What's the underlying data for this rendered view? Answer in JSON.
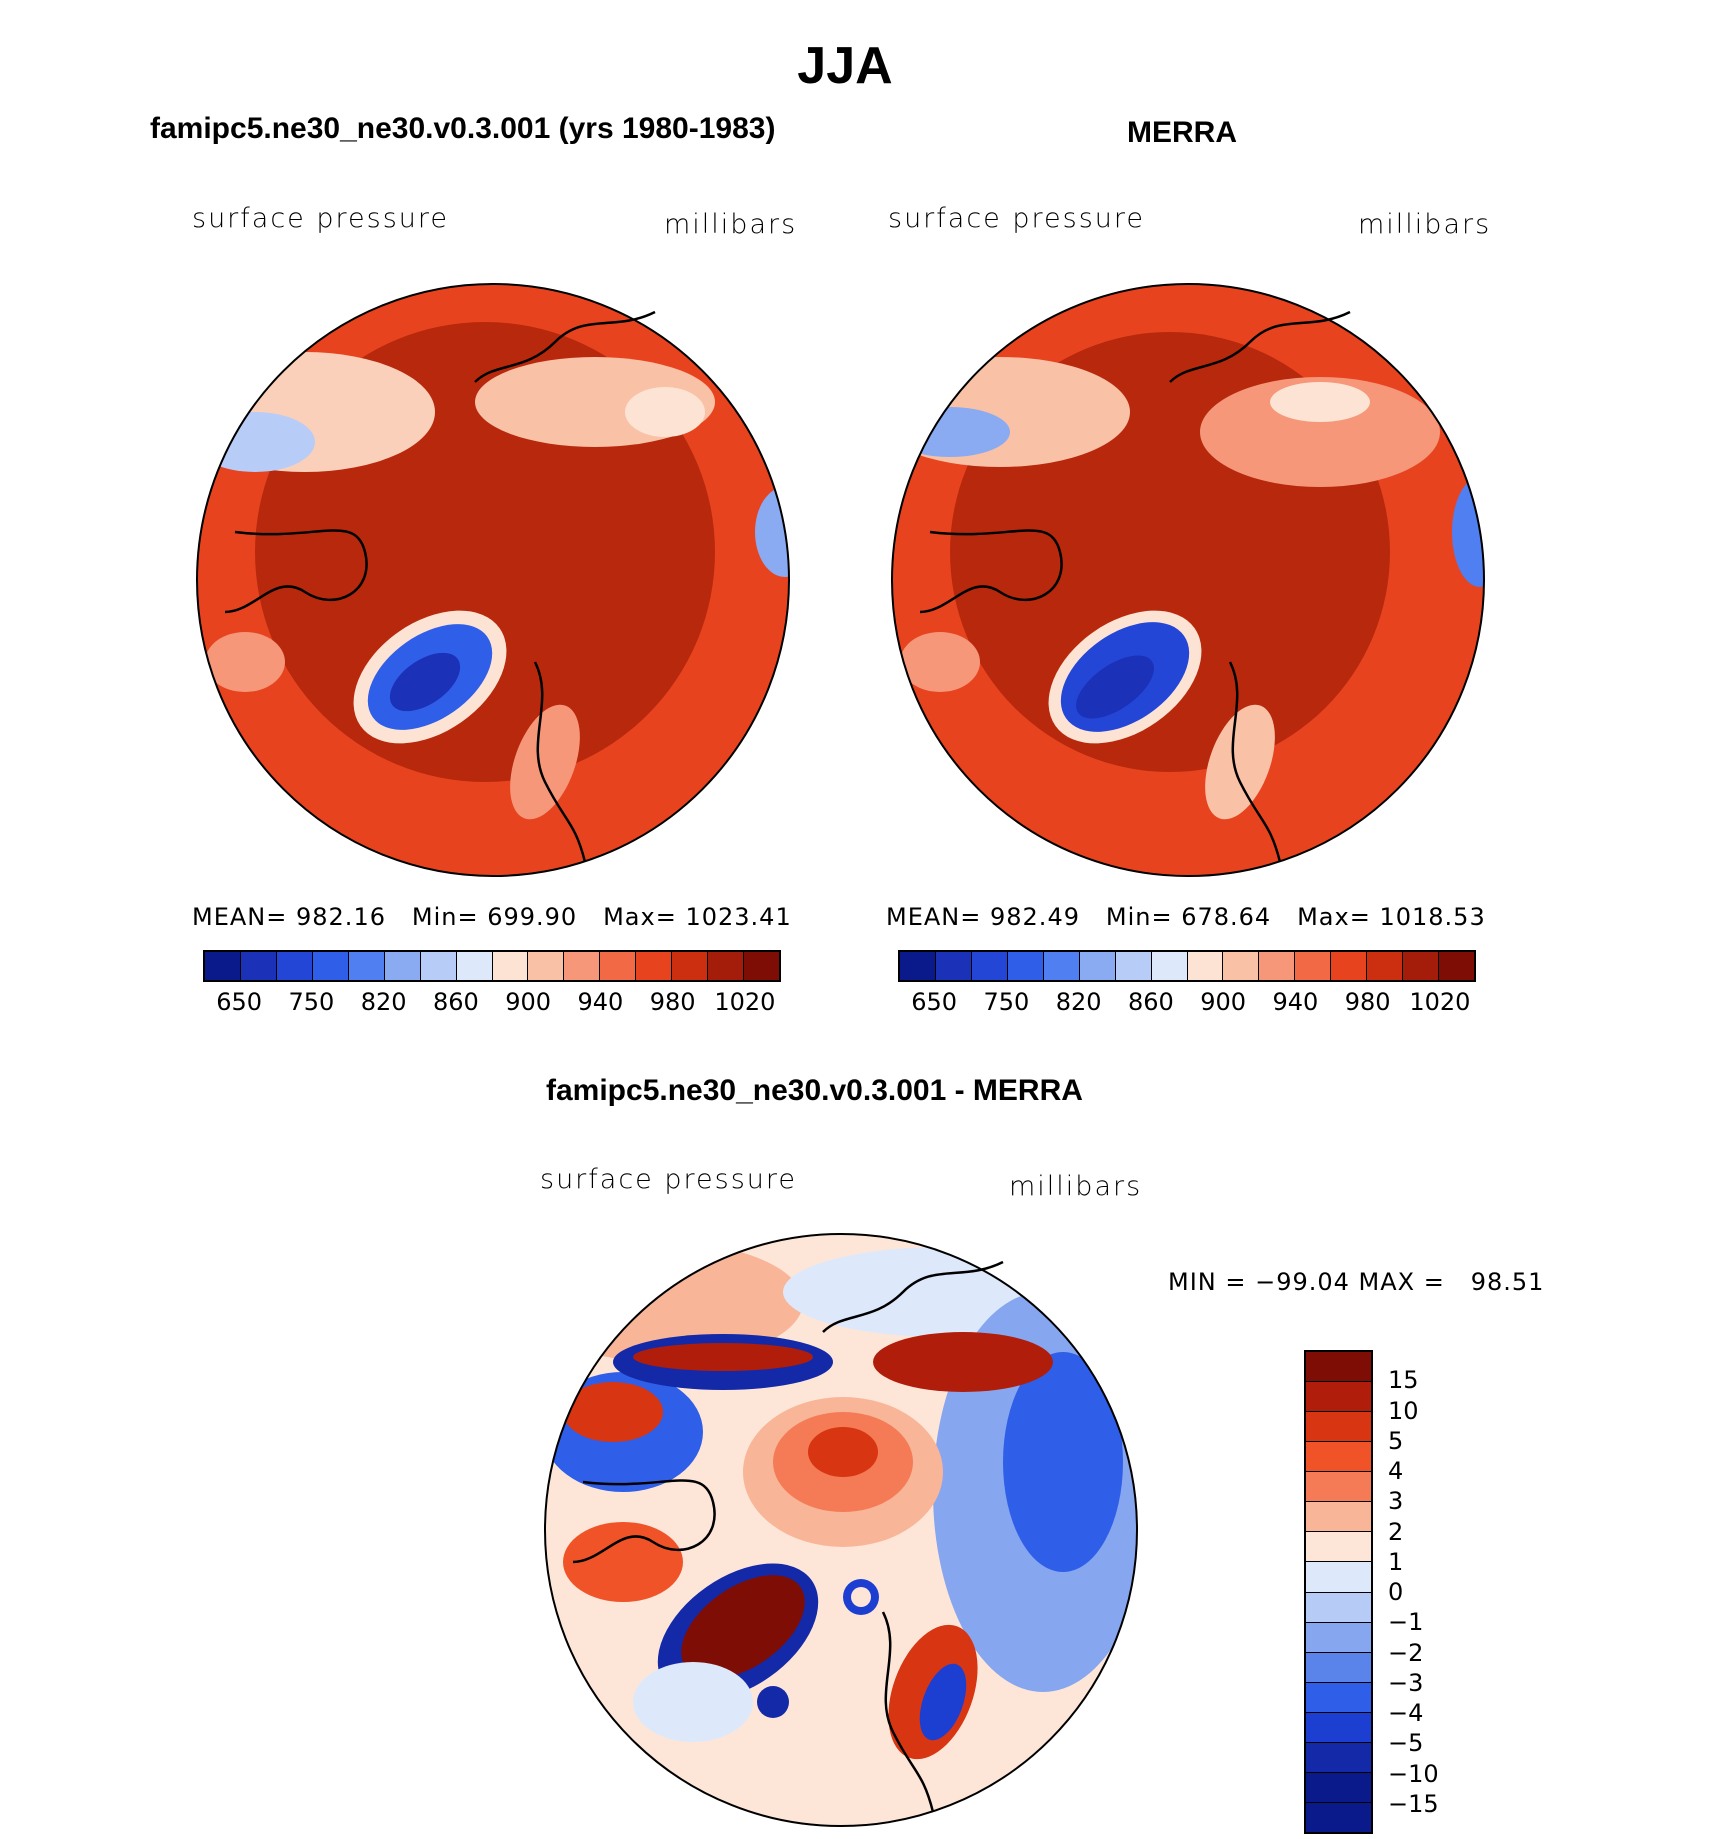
{
  "title": "JJA",
  "panels": [
    {
      "title": "famipc5.ne30_ne30.v0.3.001 (yrs 1980-1983)",
      "var_label": "surface pressure",
      "units": "millibars",
      "stats": {
        "mean_label": "MEAN=",
        "mean": "982.16",
        "min_label": "Min=",
        "min": "699.90",
        "max_label": "Max=",
        "max": "1023.41"
      }
    },
    {
      "title": "MERRA",
      "var_label": "surface pressure",
      "units": "millibars",
      "stats": {
        "mean_label": "MEAN=",
        "mean": "982.49",
        "min_label": "Min=",
        "min": "678.64",
        "max_label": "Max=",
        "max": "1018.53"
      }
    }
  ],
  "diff_panel": {
    "title": "famipc5.ne30_ne30.v0.3.001 - MERRA",
    "var_label": "surface pressure",
    "units": "millibars",
    "minmax": "MIN = −99.04 MAX =   98.51"
  },
  "colors": {
    "abs_scale": [
      "#0a1a8a",
      "#1b31b8",
      "#2346d6",
      "#2f5fe8",
      "#4f7ff0",
      "#8aaaf2",
      "#b7ccf7",
      "#dde8fb",
      "#fde3d3",
      "#f9c1a6",
      "#f6977a",
      "#f26a45",
      "#e8431f",
      "#cc2e10",
      "#a31d0a",
      "#7e0d06"
    ],
    "diff_scale": [
      "#7e0d06",
      "#b01d0b",
      "#d83512",
      "#f05328",
      "#f47b55",
      "#f8b598",
      "#fde6d8",
      "#dde9fb",
      "#b6cbf5",
      "#86a6ef",
      "#5a84ea",
      "#2f5fe8",
      "#1c3fd1",
      "#1429a8",
      "#0a1a8a"
    ]
  },
  "chart_data": [
    {
      "type": "heatmap",
      "title": "famipc5.ne30_ne30.v0.3.001 (yrs 1980-1983)",
      "variable": "surface pressure",
      "units": "millibars",
      "colorbar_levels": [
        650,
        700,
        750,
        800,
        820,
        840,
        860,
        880,
        900,
        920,
        940,
        960,
        980,
        1000,
        1020
      ],
      "colorbar_labels": [
        "650",
        "750",
        "820",
        "860",
        "900",
        "940",
        "980",
        "1020"
      ],
      "mean": 982.16,
      "min": 699.9,
      "max": 1023.41
    },
    {
      "type": "heatmap",
      "title": "MERRA",
      "variable": "surface pressure",
      "units": "millibars",
      "colorbar_levels": [
        650,
        700,
        750,
        800,
        820,
        840,
        860,
        880,
        900,
        920,
        940,
        960,
        980,
        1000,
        1020
      ],
      "colorbar_labels": [
        "650",
        "750",
        "820",
        "860",
        "900",
        "940",
        "980",
        "1020"
      ],
      "mean": 982.49,
      "min": 678.64,
      "max": 1018.53
    },
    {
      "type": "heatmap",
      "title": "famipc5.ne30_ne30.v0.3.001 - MERRA",
      "variable": "surface pressure",
      "units": "millibars",
      "colorbar_labels": [
        "15",
        "10",
        "5",
        "4",
        "3",
        "2",
        "1",
        "0",
        "−1",
        "−2",
        "−3",
        "−4",
        "−5",
        "−10",
        "−15"
      ],
      "min": -99.04,
      "max": 98.51
    }
  ]
}
